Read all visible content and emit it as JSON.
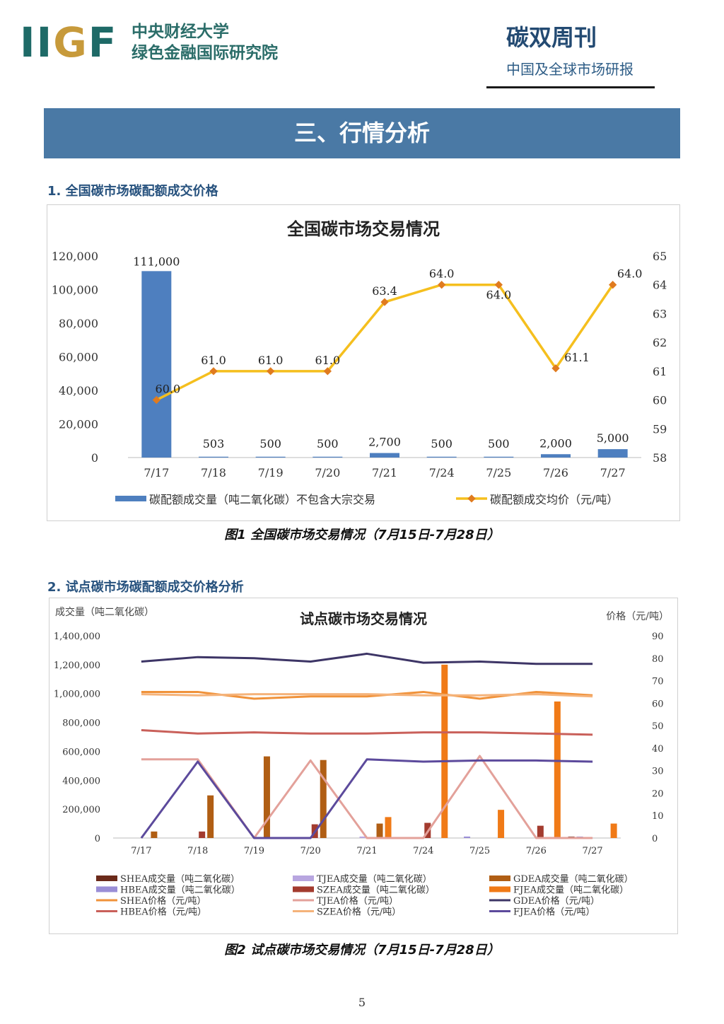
{
  "header": {
    "logo": "IIGF",
    "org_line1": "中央财经大学",
    "org_line2": "绿色金融国际研究院",
    "publication": "碳双周刊",
    "publication_sub": "中国及全球市场研报"
  },
  "section_banner": "三、行情分析",
  "section1_title": "1. 全国碳市场碳配额成交价格",
  "section2_title": "2. 试点碳市场碳配额成交价格分析",
  "figure1_caption": "图1 全国碳市场交易情况（7月15日-7月28日）",
  "figure2_caption": "图2 试点碳市场交易情况（7月15日-7月28日）",
  "page_number": "5",
  "colors": {
    "banner": "#4a79a5",
    "bar_blue": "#4e7fbf",
    "line_gold": "#f5bf1e",
    "marker": "#e07b1f"
  },
  "chart_data": [
    {
      "type": "bar+line",
      "title": "全国碳市场交易情况",
      "categories": [
        "7/17",
        "7/18",
        "7/19",
        "7/20",
        "7/21",
        "7/24",
        "7/25",
        "7/26",
        "7/27"
      ],
      "y_left": {
        "min": 0,
        "max": 120000,
        "step": 20000,
        "ticks": [
          "0",
          "20,000",
          "40,000",
          "60,000",
          "80,000",
          "100,000",
          "120,000"
        ]
      },
      "y_right": {
        "min": 58,
        "max": 65,
        "step": 1,
        "ticks": [
          "58",
          "59",
          "60",
          "61",
          "62",
          "63",
          "64",
          "65"
        ]
      },
      "series": [
        {
          "name": "碳配额成交量（吨二氧化碳）不包含大宗交易",
          "axis": "left",
          "kind": "bar",
          "color": "#4e7fbf",
          "values": [
            111000,
            503,
            500,
            500,
            2700,
            500,
            500,
            2000,
            5000
          ],
          "labels": [
            "111,000",
            "503",
            "500",
            "500",
            "2,700",
            "500",
            "500",
            "2,000",
            "5,000"
          ]
        },
        {
          "name": "碳配额成交均价（元/吨）",
          "axis": "right",
          "kind": "line",
          "color": "#f5bf1e",
          "values": [
            60.0,
            61.0,
            61.0,
            61.0,
            63.4,
            64.0,
            64.0,
            61.1,
            64.0
          ],
          "labels": [
            "60.0",
            "61.0",
            "61.0",
            "61.0",
            "63.4",
            "64.0",
            "64.0",
            "61.1",
            "64.0"
          ]
        }
      ],
      "legend_position": "bottom"
    },
    {
      "type": "bar+line",
      "title": "试点碳市场交易情况",
      "ylabel_left": "成交量（吨二氧化碳）",
      "ylabel_right": "价格（元/吨）",
      "categories": [
        "7/17",
        "7/18",
        "7/19",
        "7/20",
        "7/21",
        "7/24",
        "7/25",
        "7/26",
        "7/27"
      ],
      "y_left": {
        "min": 0,
        "max": 1400000,
        "step": 200000,
        "ticks": [
          "0",
          "200,000",
          "400,000",
          "600,000",
          "800,000",
          "1,000,000",
          "1,200,000",
          "1,400,000"
        ]
      },
      "y_right": {
        "min": 0,
        "max": 90,
        "step": 10,
        "ticks": [
          "0",
          "10",
          "20",
          "30",
          "40",
          "50",
          "60",
          "70",
          "80",
          "90"
        ]
      },
      "series": [
        {
          "name": "SHEA成交量（吨二氧化碳）",
          "kind": "bar",
          "axis": "left",
          "color": "#6b2a1a",
          "values": [
            0,
            0,
            0,
            0,
            0,
            0,
            0,
            0,
            10000
          ]
        },
        {
          "name": "HBEA成交量（吨二氧化碳）",
          "kind": "bar",
          "axis": "left",
          "color": "#9a8ed6",
          "values": [
            0,
            0,
            0,
            0,
            0,
            0,
            10000,
            0,
            10000
          ]
        },
        {
          "name": "TJEA成交量（吨二氧化碳）",
          "kind": "bar",
          "axis": "left",
          "color": "#b8a6e0",
          "values": [
            0,
            0,
            0,
            0,
            10000,
            0,
            0,
            0,
            0
          ]
        },
        {
          "name": "SZEA成交量（吨二氧化碳）",
          "kind": "bar",
          "axis": "left",
          "color": "#a33b2e",
          "values": [
            0,
            45000,
            0,
            95000,
            0,
            105000,
            0,
            85000,
            0
          ]
        },
        {
          "name": "GDEA成交量（吨二氧化碳）",
          "kind": "bar",
          "axis": "left",
          "color": "#b05e14",
          "values": [
            45000,
            295000,
            565000,
            540000,
            100000,
            0,
            0,
            0,
            0
          ]
        },
        {
          "name": "FJEA成交量（吨二氧化碳）",
          "kind": "bar",
          "axis": "left",
          "color": "#f07a17",
          "values": [
            0,
            0,
            0,
            0,
            145000,
            1200000,
            195000,
            945000,
            100000
          ]
        },
        {
          "name": "SHEA价格（元/吨）",
          "kind": "line",
          "axis": "right",
          "color": "#f0923a",
          "values": [
            65.0,
            65.0,
            62.0,
            63.0,
            63.0,
            65.0,
            62.0,
            65.0,
            63.5
          ]
        },
        {
          "name": "HBEA价格（元/吨）",
          "kind": "line",
          "axis": "right",
          "color": "#c9605a",
          "values": [
            48.0,
            46.5,
            47.0,
            46.5,
            46.5,
            47.0,
            47.0,
            46.5,
            46.0
          ]
        },
        {
          "name": "TJEA价格（元/吨）",
          "kind": "line",
          "axis": "right",
          "color": "#e3a19a",
          "values": [
            35.0,
            35.0,
            0,
            34.5,
            0,
            0,
            36.5,
            0,
            0
          ]
        },
        {
          "name": "SZEA价格（元/吨）",
          "kind": "line",
          "axis": "right",
          "color": "#f5b37a",
          "values": [
            64.0,
            63.5,
            64.0,
            64.0,
            64.0,
            63.5,
            63.5,
            64.0,
            63.0
          ]
        },
        {
          "name": "GDEA价格（元/吨）",
          "kind": "line",
          "axis": "right",
          "color": "#3d3566",
          "values": [
            78.5,
            80.5,
            80.0,
            78.5,
            82.0,
            78.0,
            78.5,
            77.5,
            77.5
          ]
        },
        {
          "name": "FJEA价格（元/吨）",
          "kind": "line",
          "axis": "right",
          "color": "#5c4a9c",
          "values": [
            0,
            34.0,
            0,
            0,
            35.0,
            34.0,
            34.5,
            34.5,
            34.0
          ]
        }
      ],
      "legend_position": "bottom"
    }
  ]
}
